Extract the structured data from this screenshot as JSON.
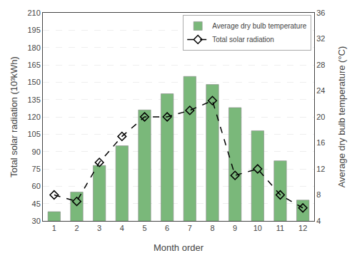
{
  "chart_data": {
    "type": "bar",
    "xlabel": "Month order",
    "ylabel": "Total solar radiation (10³kWh)",
    "y2label": "Average dry bulb temperature (°C)",
    "x": [
      1,
      2,
      3,
      4,
      5,
      6,
      7,
      8,
      9,
      10,
      11,
      12
    ],
    "xlim": [
      0.5,
      12.5
    ],
    "xticks": [
      1,
      2,
      3,
      4,
      5,
      6,
      7,
      8,
      9,
      10,
      11,
      12
    ],
    "ylim": [
      30,
      210
    ],
    "yticks": [
      30,
      45,
      60,
      75,
      90,
      105,
      120,
      135,
      150,
      165,
      180,
      195,
      210
    ],
    "y2lim": [
      4,
      36
    ],
    "y2ticks": [
      4,
      8,
      12,
      16,
      20,
      24,
      28,
      32,
      36
    ],
    "grid": "y",
    "legend": "upper right",
    "series": [
      {
        "name": "Average dry bulb temperature",
        "type": "bar",
        "color": "#7ab87a",
        "values": [
          38,
          55,
          78,
          95,
          126,
          140,
          155,
          148,
          128,
          108,
          82,
          48
        ]
      },
      {
        "name": "Total solar radiation",
        "type": "line",
        "axis": "y2",
        "color": "#000000",
        "marker": "diamond",
        "line_style": "dashed",
        "values": [
          8.0,
          7.0,
          13.0,
          17.0,
          20.0,
          20.0,
          21.0,
          22.5,
          11.0,
          12.0,
          8.0,
          6.0
        ]
      }
    ]
  }
}
